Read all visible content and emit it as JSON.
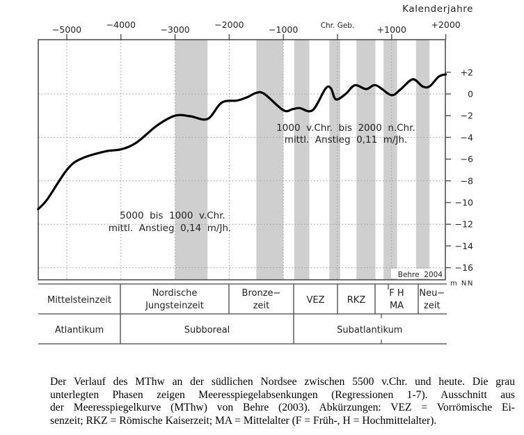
{
  "chart_data": {
    "type": "line",
    "title": "",
    "xlabel": "Kalenderjahre",
    "ylabel": "m NN",
    "xlim": [
      -5530,
      2000
    ],
    "ylim": [
      -17,
      4.9
    ],
    "grid": true,
    "x_ticks": [
      {
        "value": -5000,
        "label": "−5000"
      },
      {
        "value": -4000,
        "label": "−4000"
      },
      {
        "value": -3000,
        "label": "−3000"
      },
      {
        "value": -2000,
        "label": "−2000"
      },
      {
        "value": -1000,
        "label": "−1000"
      },
      {
        "value": 0,
        "label": "Chr.  Geb."
      },
      {
        "value": 1000,
        "label": "+1000"
      },
      {
        "value": 2000,
        "label": "+2000"
      }
    ],
    "y_ticks": [
      {
        "value": 2,
        "label": "+2"
      },
      {
        "value": 0,
        "label": "0"
      },
      {
        "value": -2,
        "label": "−2"
      },
      {
        "value": -4,
        "label": "−4"
      },
      {
        "value": -6,
        "label": "−6"
      },
      {
        "value": -8,
        "label": "−8"
      },
      {
        "value": -10,
        "label": "−10"
      },
      {
        "value": -12,
        "label": "−12"
      },
      {
        "value": -14,
        "label": "−14"
      },
      {
        "value": -16,
        "label": "−16"
      }
    ],
    "series": [
      {
        "name": "MThw",
        "x": [
          -5530,
          -5360,
          -5000,
          -4750,
          -4300,
          -4000,
          -3720,
          -3330,
          -3000,
          -2720,
          -2400,
          -2140,
          -1850,
          -1670,
          -1500,
          -1350,
          -1000,
          -830,
          -700,
          -460,
          -220,
          -120,
          -30,
          150,
          320,
          530,
          710,
          990,
          1160,
          1390,
          1570,
          1700,
          1870,
          2000
        ],
        "y": [
          -10.6,
          -9.7,
          -7.0,
          -6.0,
          -5.3,
          -5.1,
          -4.5,
          -2.9,
          -2.0,
          -2.05,
          -2.3,
          -0.8,
          -0.6,
          -0.3,
          0.1,
          0.0,
          -1.5,
          -1.4,
          -1.3,
          -1.5,
          0.5,
          0.5,
          -0.5,
          0.0,
          0.8,
          0.45,
          0.8,
          -0.1,
          0.4,
          1.35,
          0.7,
          0.7,
          1.6,
          1.8
        ]
      }
    ],
    "regression_bands": [
      {
        "from": -3000,
        "to": -2400
      },
      {
        "from": -1500,
        "to": -1000
      },
      {
        "from": -800,
        "to": -520
      },
      {
        "from": -150,
        "to": 50
      },
      {
        "from": 350,
        "to": 700
      },
      {
        "from": 850,
        "to": 1100
      },
      {
        "from": 1450,
        "to": 1700
      }
    ],
    "annotations": [
      {
        "line1": "5000  bis  1000  v.Chr.",
        "line2": "mittl.  Anstieg  0,14  m/Jh."
      },
      {
        "line1": "1000  v.Chr.  bis  2000  n.Chr.",
        "line2": "mittl.  Anstieg  0,11  m/Jh."
      }
    ],
    "credit": "Behre  2004",
    "band_color": "#cfcfcf",
    "line_color": "#000000"
  },
  "periods": {
    "cultural": [
      {
        "lines": [
          "Mittelsteinzeit"
        ],
        "from": -5530,
        "to": -4000
      },
      {
        "lines": [
          "Nordische",
          "Jungsteinzeit"
        ],
        "from": -4000,
        "to": -2000
      },
      {
        "lines": [
          "Bronze−",
          "zeit"
        ],
        "from": -2000,
        "to": -800
      },
      {
        "lines": [
          "VEZ"
        ],
        "from": -800,
        "to": 0
      },
      {
        "lines": [
          "RKZ"
        ],
        "from": 0,
        "to": 700
      },
      {
        "lines": [
          "F  H",
          "MA"
        ],
        "from": 700,
        "to": 1500
      },
      {
        "lines": [
          "Neu−",
          "zeit"
        ],
        "from": 1500,
        "to": 2000
      }
    ],
    "climatic": [
      {
        "label": "Atlantikum",
        "from": -5530,
        "to": -4000
      },
      {
        "label": "Subboreal",
        "from": -4000,
        "to": -800
      },
      {
        "label": "Subatlantikum",
        "from": -800,
        "to": 2000
      }
    ]
  },
  "caption": {
    "lines": [
      "Der Verlauf des MThw an der südlichen Nordsee zwischen 5500 v.Chr. und heute. Die grau",
      "unterlegten Phasen zeigen Meeresspiegelabsenkungen (Regressionen 1-7). Ausschnitt aus",
      "der Meeresspiegelkurve (MThw) von Behre (2003). Abkürzungen: VEZ = Vorrömische Ei-",
      "senzeit; RKZ = Römische Kaiserzeit; MA = Mittelalter (F = Früh-, H = Hochmittelalter)."
    ]
  }
}
